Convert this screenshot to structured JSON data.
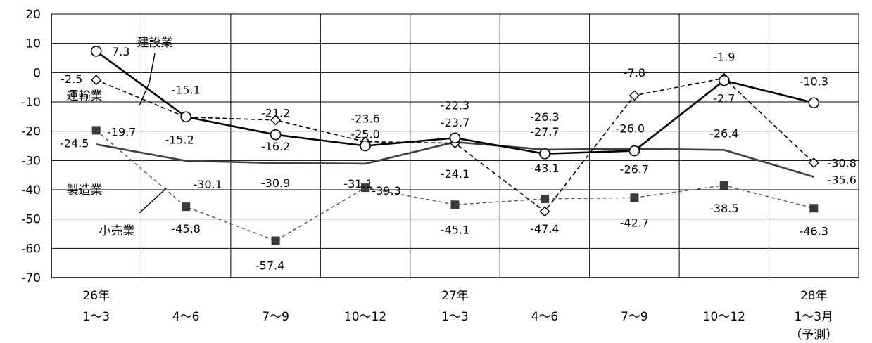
{
  "chart_data": {
    "type": "line",
    "ylim": [
      -70,
      20
    ],
    "y_ticks": [
      "20",
      "10",
      "0",
      "-10",
      "-20",
      "-30",
      "-40",
      "-50",
      "-60",
      "-70"
    ],
    "x_ticks": [
      [
        "26年",
        "1～3"
      ],
      [
        "",
        "4～6"
      ],
      [
        "",
        "7～9"
      ],
      [
        "",
        "10～12"
      ],
      [
        "27年",
        "1～3"
      ],
      [
        "",
        "4～6"
      ],
      [
        "",
        "7～9"
      ],
      [
        "",
        "10～12"
      ],
      [
        "28年",
        "1～3月",
        "（予測）"
      ]
    ],
    "grid": true,
    "series": [
      {
        "name": "建設業",
        "values": [
          7.3,
          -15.1,
          -21.2,
          -25.0,
          -22.3,
          -27.7,
          -26.7,
          -2.7,
          -10.3
        ],
        "labels": [
          "7.3",
          "-15.1",
          "-21.2",
          "-25.0",
          "-22.3",
          "-27.7",
          "-26.7",
          "-2.7",
          "-10.3"
        ],
        "style": "solid-bold",
        "marker": "circle-open",
        "color": "#000000"
      },
      {
        "name": "運輸業",
        "values": [
          -2.5,
          -15.2,
          -16.2,
          -23.6,
          -24.1,
          -47.4,
          -7.8,
          -1.9,
          -30.8
        ],
        "labels": [
          "-2.5",
          "-15.2",
          "-16.2",
          "-23.6",
          "-24.1",
          "-47.4",
          "-7.8",
          "-1.9",
          "-30.8"
        ],
        "style": "dashed",
        "marker": "diamond-open",
        "color": "#000000"
      },
      {
        "name": "製造業",
        "values": [
          -24.5,
          -30.1,
          -30.9,
          -31.1,
          -23.7,
          -26.3,
          -26.0,
          -26.4,
          -35.6
        ],
        "labels": [
          "-24.5",
          "-30.1",
          "-30.9",
          "-31.1",
          "-23.7",
          "-26.3",
          "-26.0",
          "-26.4",
          "-35.6"
        ],
        "style": "solid",
        "marker": "none",
        "color": "#404040"
      },
      {
        "name": "小売業",
        "values": [
          -19.7,
          -45.8,
          -57.4,
          -39.3,
          -45.1,
          -43.1,
          -42.7,
          -38.5,
          -46.3
        ],
        "labels": [
          "-19.7",
          "-45.8",
          "-57.4",
          "-39.3",
          "-45.1",
          "-43.1",
          "-42.7",
          "-38.5",
          "-46.3"
        ],
        "style": "dashed-gray",
        "marker": "square-filled",
        "color": "#555555"
      }
    ]
  }
}
